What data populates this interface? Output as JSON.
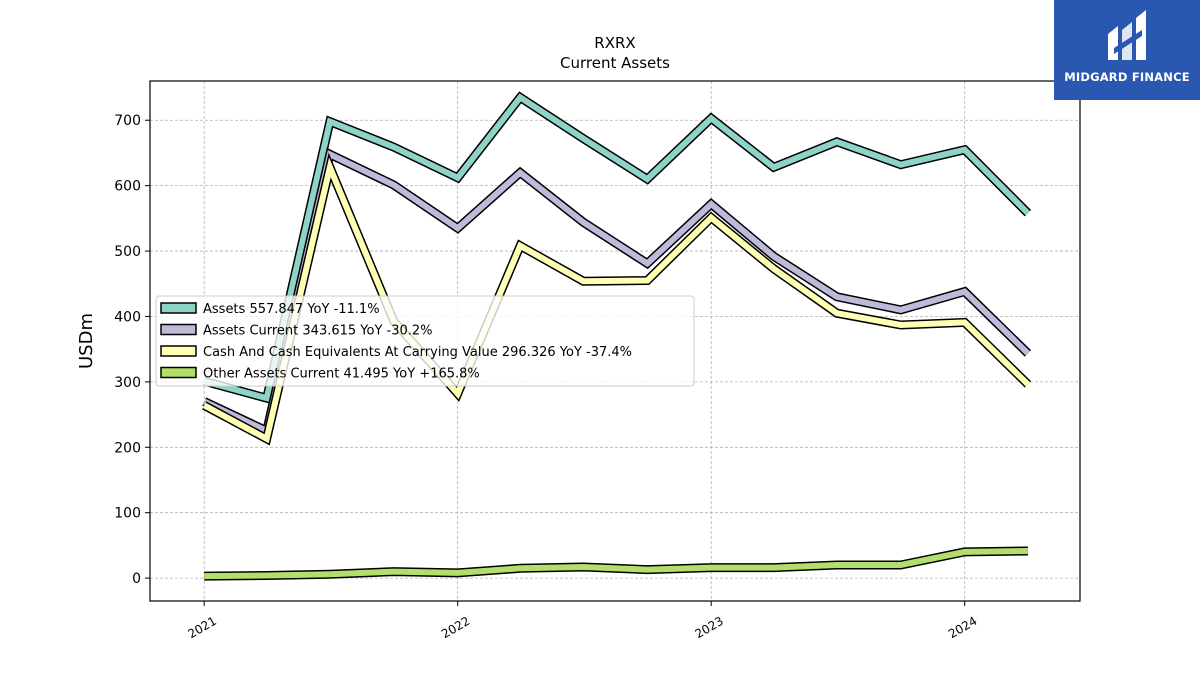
{
  "brand": {
    "name": "MIDGARD FINANCE",
    "logo_icon": "midgard-m-icon",
    "color": "#2a57b0"
  },
  "chart_data": {
    "type": "line",
    "title": "RXRX",
    "subtitle": "Current  Assets",
    "xlabel": "",
    "ylabel": "USDm",
    "x_ticks": [
      "2021",
      "2022",
      "2023",
      "2024"
    ],
    "y_ticks": [
      0,
      100,
      200,
      300,
      400,
      500,
      600,
      700
    ],
    "xlim": [
      "2020-10-15",
      "2024-06-15"
    ],
    "ylim": [
      -35,
      760
    ],
    "grid": true,
    "legend_position": "center-left",
    "x": [
      "2021-01-01",
      "2021-04-01",
      "2021-07-01",
      "2021-10-01",
      "2022-01-01",
      "2022-04-01",
      "2022-07-01",
      "2022-10-01",
      "2023-01-01",
      "2023-04-01",
      "2023-07-01",
      "2023-10-01",
      "2024-01-01",
      "2024-04-01"
    ],
    "series": [
      {
        "name": "Assets",
        "legend": "Assets  557.847 YoY -11.1%",
        "color": "#8dd3c7",
        "values": [
          301,
          275,
          698,
          659,
          612,
          735,
          672,
          610,
          703,
          628,
          667,
          632,
          655,
          557.847
        ]
      },
      {
        "name": "Assets Current",
        "legend": "Assets Current  343.615 YoY -30.2%",
        "color": "#bebada",
        "values": [
          270,
          225,
          648,
          601,
          535,
          620,
          544,
          481,
          572,
          492,
          430,
          410,
          438,
          343.615
        ]
      },
      {
        "name": "Cash And Cash Equivalents At Carrying Value",
        "legend": "Cash And Cash Equivalents At Carrying Value  296.326 YoY -37.4%",
        "color": "#ffffb3",
        "values": [
          264,
          213,
          628,
          393,
          282,
          508,
          454,
          455,
          551,
          473,
          405,
          387,
          391,
          296.326
        ]
      },
      {
        "name": "Other Assets Current",
        "legend": "Other Assets Current  41.495 YoY +165.8%",
        "color": "#b3de69",
        "values": [
          3,
          4,
          6,
          10,
          8,
          15,
          17,
          13,
          16,
          16,
          20,
          20,
          40,
          41.495
        ]
      }
    ]
  }
}
